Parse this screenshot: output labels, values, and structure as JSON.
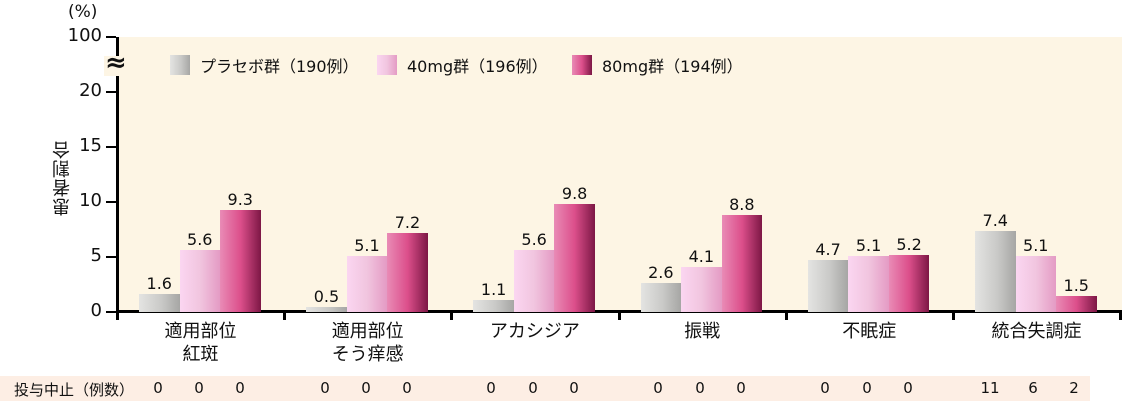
{
  "chart_data": {
    "type": "bar",
    "title": "",
    "xlabel": "",
    "ylabel": "患者割合",
    "unit_label": "(%)",
    "ylim": [
      0,
      20
    ],
    "y_break": {
      "from": 20,
      "to": 100
    },
    "y_ticks": [
      "0",
      "5",
      "10",
      "15",
      "20",
      "100"
    ],
    "categories": [
      [
        "適用部位",
        "紅斑"
      ],
      [
        "適用部位",
        "そう痒感"
      ],
      [
        "アカシジア"
      ],
      [
        "振戦"
      ],
      [
        "不眠症"
      ],
      [
        "統合失調症"
      ]
    ],
    "series": [
      {
        "name": "プラセボ群（190例）",
        "values": [
          1.6,
          0.5,
          1.1,
          2.6,
          4.7,
          7.4
        ],
        "labels": [
          "1.6",
          "0.5",
          "1.1",
          "2.6",
          "4.7",
          "7.4"
        ],
        "color": "#b5b5b3"
      },
      {
        "name": "40mg群（196例）",
        "values": [
          5.6,
          5.1,
          5.6,
          4.1,
          5.1,
          5.1
        ],
        "labels": [
          "5.6",
          "5.1",
          "5.6",
          "4.1",
          "5.1",
          "5.1"
        ],
        "color": "#f0c3df"
      },
      {
        "name": "80mg群（194例）",
        "values": [
          9.3,
          7.2,
          9.8,
          8.8,
          5.2,
          1.5
        ],
        "labels": [
          "9.3",
          "7.2",
          "9.8",
          "8.8",
          "5.2",
          "1.5"
        ],
        "color": "#c8407b"
      }
    ],
    "legend_position": "top-left inside plot",
    "grid": false,
    "background": "#fdf5e4",
    "discontinuation_row": {
      "label": "投与中止（例数）",
      "values": [
        [
          0,
          0,
          0
        ],
        [
          0,
          0,
          0
        ],
        [
          0,
          0,
          0
        ],
        [
          0,
          0,
          0
        ],
        [
          0,
          0,
          0
        ],
        [
          11,
          6,
          2
        ]
      ],
      "labels": [
        [
          "0",
          "0",
          "0"
        ],
        [
          "0",
          "0",
          "0"
        ],
        [
          "0",
          "0",
          "0"
        ],
        [
          "0",
          "0",
          "0"
        ],
        [
          "0",
          "0",
          "0"
        ],
        [
          "11",
          "6",
          "2"
        ]
      ]
    }
  }
}
